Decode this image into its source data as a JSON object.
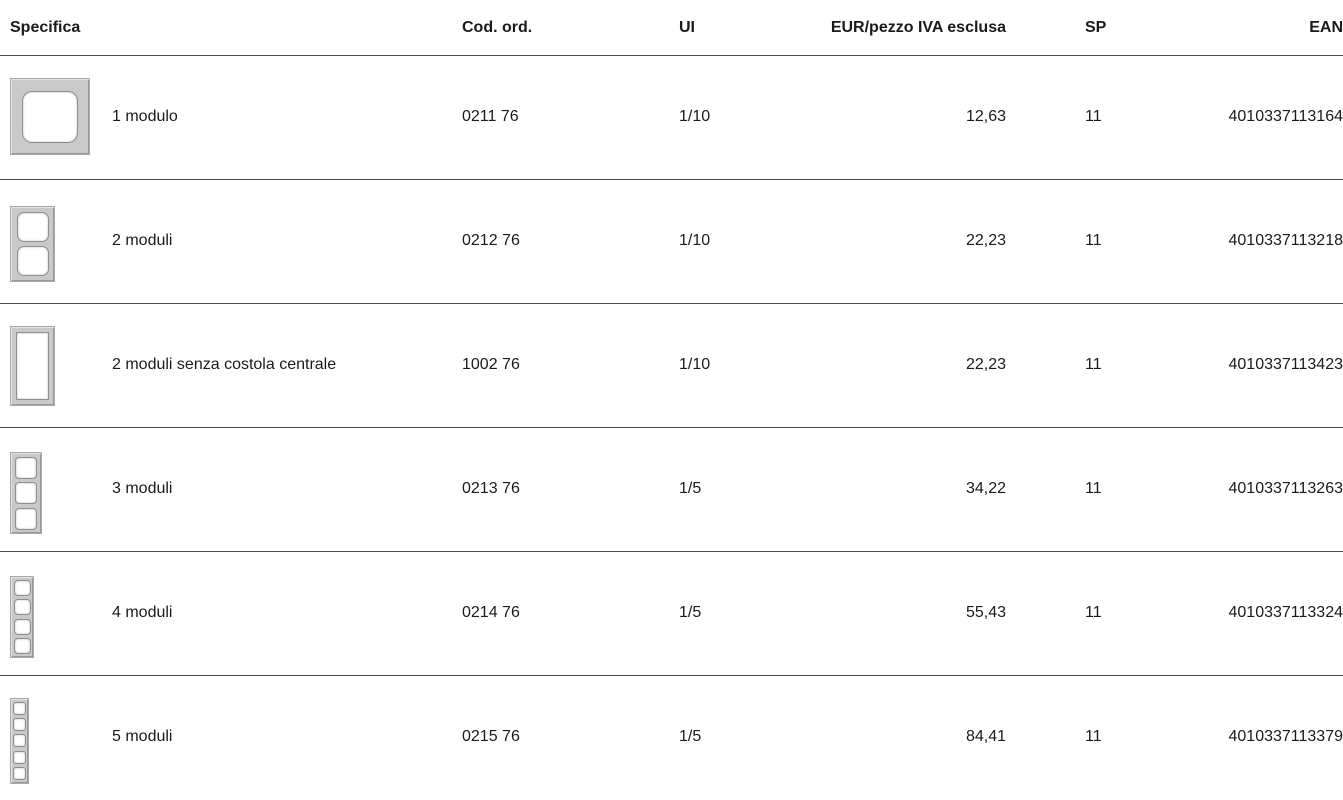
{
  "table": {
    "headers": {
      "spec": "Specifica",
      "code": "Cod. ord.",
      "ui": "UI",
      "price": "EUR/pezzo IVA esclusa",
      "sp": "SP",
      "ean": "EAN"
    },
    "rows": [
      {
        "spec": "1 modulo",
        "code": "0211 76",
        "ui": "1/10",
        "price": "12,63",
        "sp": "11",
        "ean": "4010337113164",
        "thumb_icon": "frame-1-module-icon"
      },
      {
        "spec": "2 moduli",
        "code": "0212 76",
        "ui": "1/10",
        "price": "22,23",
        "sp": "11",
        "ean": "4010337113218",
        "thumb_icon": "frame-2-module-icon"
      },
      {
        "spec": "2 moduli senza costola centrale",
        "code": "1002 76",
        "ui": "1/10",
        "price": "22,23",
        "sp": "11",
        "ean": "4010337113423",
        "thumb_icon": "frame-2-module-no-rib-icon"
      },
      {
        "spec": "3 moduli",
        "code": "0213 76",
        "ui": "1/5",
        "price": "34,22",
        "sp": "11",
        "ean": "4010337113263",
        "thumb_icon": "frame-3-module-icon"
      },
      {
        "spec": "4 moduli",
        "code": "0214 76",
        "ui": "1/5",
        "price": "55,43",
        "sp": "11",
        "ean": "4010337113324",
        "thumb_icon": "frame-4-module-icon"
      },
      {
        "spec": "5 moduli",
        "code": "0215 76",
        "ui": "1/5",
        "price": "84,41",
        "sp": "11",
        "ean": "4010337113379",
        "thumb_icon": "frame-5-module-icon"
      }
    ]
  },
  "colors": {
    "frame": "#c9c9c9",
    "rule": "#4d4d4d",
    "text": "#1a1a1a"
  }
}
